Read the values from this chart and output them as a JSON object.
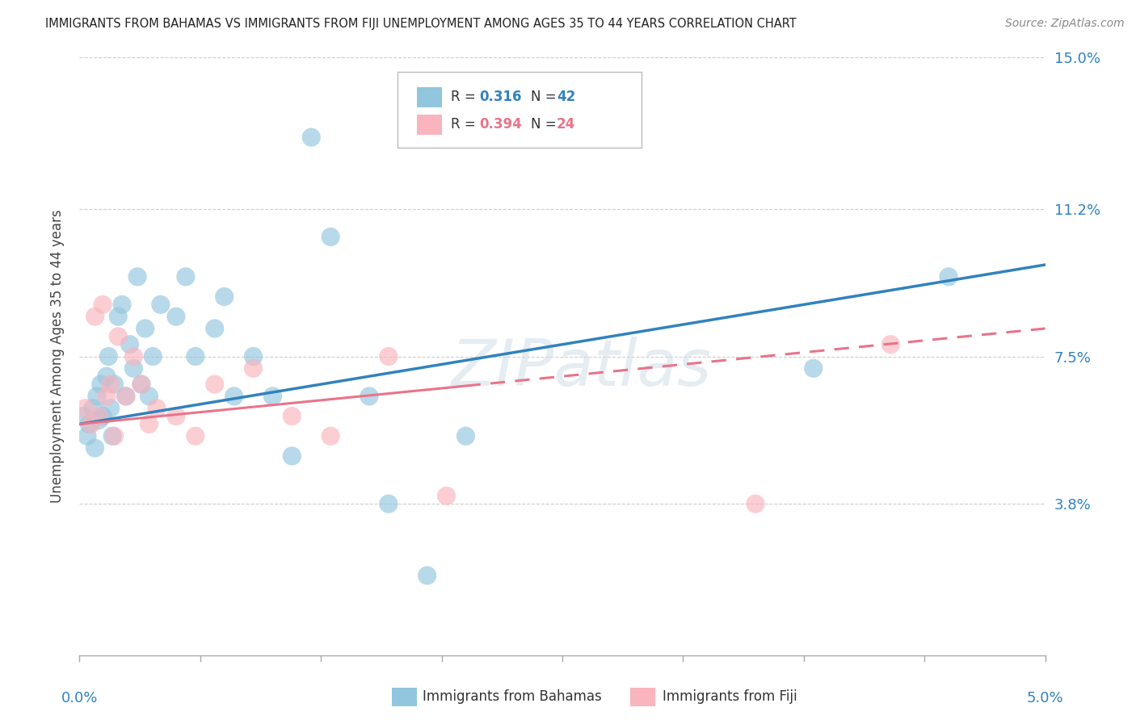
{
  "title": "IMMIGRANTS FROM BAHAMAS VS IMMIGRANTS FROM FIJI UNEMPLOYMENT AMONG AGES 35 TO 44 YEARS CORRELATION CHART",
  "source": "Source: ZipAtlas.com",
  "ylabel": "Unemployment Among Ages 35 to 44 years",
  "xlim": [
    0.0,
    5.0
  ],
  "ylim": [
    0.0,
    15.0
  ],
  "y_ticks": [
    3.8,
    7.5,
    11.2,
    15.0
  ],
  "y_tick_labels": [
    "3.8%",
    "7.5%",
    "11.2%",
    "15.0%"
  ],
  "color_bahamas": "#92c5de",
  "color_fiji": "#f9b4be",
  "color_line_bahamas": "#3182bd",
  "color_line_fiji": "#e8748a",
  "legend_bahamas": [
    "R = ",
    "0.316",
    "  N = ",
    "42"
  ],
  "legend_fiji": [
    "R = ",
    "0.394",
    "  N = ",
    "24"
  ],
  "bahamas_x": [
    0.02,
    0.04,
    0.05,
    0.07,
    0.08,
    0.09,
    0.1,
    0.11,
    0.12,
    0.14,
    0.15,
    0.16,
    0.17,
    0.18,
    0.2,
    0.22,
    0.24,
    0.26,
    0.28,
    0.3,
    0.32,
    0.34,
    0.36,
    0.38,
    0.42,
    0.5,
    0.55,
    0.6,
    0.7,
    0.75,
    0.8,
    0.9,
    1.0,
    1.1,
    1.2,
    1.3,
    1.5,
    1.6,
    1.8,
    2.0,
    3.8,
    4.5
  ],
  "bahamas_y": [
    6.0,
    5.5,
    5.8,
    6.2,
    5.2,
    6.5,
    5.9,
    6.8,
    6.0,
    7.0,
    7.5,
    6.2,
    5.5,
    6.8,
    8.5,
    8.8,
    6.5,
    7.8,
    7.2,
    9.5,
    6.8,
    8.2,
    6.5,
    7.5,
    8.8,
    8.5,
    9.5,
    7.5,
    8.2,
    9.0,
    6.5,
    7.5,
    6.5,
    5.0,
    13.0,
    10.5,
    6.5,
    3.8,
    2.0,
    5.5,
    7.2,
    9.5
  ],
  "fiji_x": [
    0.03,
    0.06,
    0.08,
    0.1,
    0.12,
    0.14,
    0.16,
    0.18,
    0.2,
    0.24,
    0.28,
    0.32,
    0.36,
    0.4,
    0.5,
    0.6,
    0.7,
    0.9,
    1.1,
    1.3,
    1.6,
    1.9,
    3.5,
    4.2
  ],
  "fiji_y": [
    6.2,
    5.8,
    8.5,
    6.0,
    8.8,
    6.5,
    6.8,
    5.5,
    8.0,
    6.5,
    7.5,
    6.8,
    5.8,
    6.2,
    6.0,
    5.5,
    6.8,
    7.2,
    6.0,
    5.5,
    7.5,
    4.0,
    3.8,
    7.8
  ]
}
